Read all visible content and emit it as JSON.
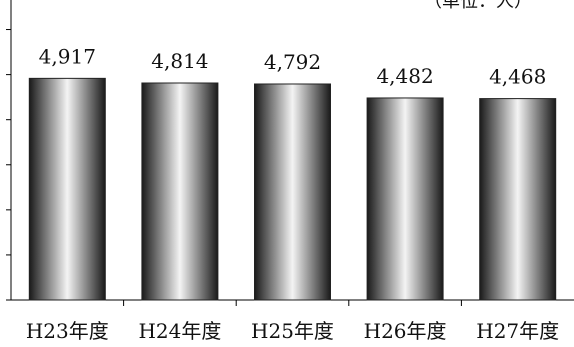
{
  "chart_data": {
    "type": "bar",
    "categories": [
      "H23年度",
      "H24年度",
      "H25年度",
      "H26年度",
      "H27年度"
    ],
    "values": [
      4917,
      4814,
      4792,
      4482,
      4468
    ],
    "value_labels": [
      "4,917",
      "4,814",
      "4,792",
      "4,482",
      "4,468"
    ],
    "unit_label": "（単位：人）",
    "ylim": [
      0,
      6500
    ],
    "y_tick_step": 1000,
    "grid": false,
    "legend": "none",
    "bar_gradient": [
      "#1a1a1a",
      "#f4f4f4",
      "#1a1a1a"
    ]
  }
}
